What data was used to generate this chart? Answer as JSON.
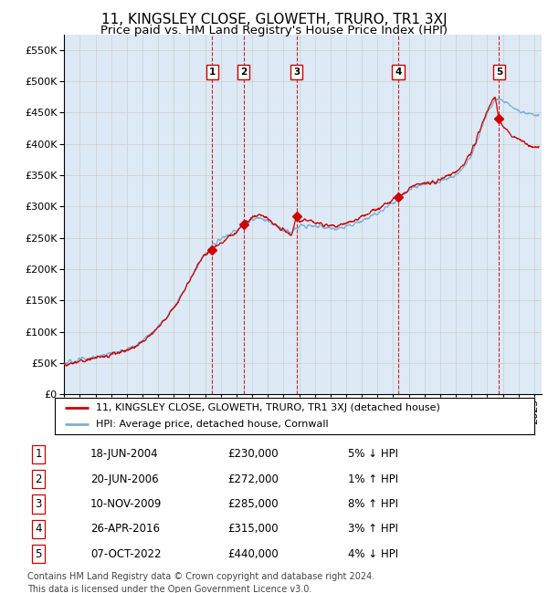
{
  "title": "11, KINGSLEY CLOSE, GLOWETH, TRURO, TR1 3XJ",
  "subtitle": "Price paid vs. HM Land Registry's House Price Index (HPI)",
  "ylim": [
    0,
    575000
  ],
  "yticks": [
    0,
    50000,
    100000,
    150000,
    200000,
    250000,
    300000,
    350000,
    400000,
    450000,
    500000,
    550000
  ],
  "xlim_start": 1995.0,
  "xlim_end": 2025.5,
  "sale_dates_dec": [
    2004.46,
    2006.46,
    2009.84,
    2016.32,
    2022.76
  ],
  "sale_prices": [
    230000,
    272000,
    285000,
    315000,
    440000
  ],
  "sale_labels": [
    "1",
    "2",
    "3",
    "4",
    "5"
  ],
  "red_line_color": "#cc0000",
  "blue_line_color": "#7aaed6",
  "grid_color": "#cccccc",
  "background_color": "#ddeaf5",
  "legend_entries": [
    "11, KINGSLEY CLOSE, GLOWETH, TRURO, TR1 3XJ (detached house)",
    "HPI: Average price, detached house, Cornwall"
  ],
  "table_data": [
    [
      "1",
      "18-JUN-2004",
      "£230,000",
      "5% ↓ HPI"
    ],
    [
      "2",
      "20-JUN-2006",
      "£272,000",
      "1% ↑ HPI"
    ],
    [
      "3",
      "10-NOV-2009",
      "£285,000",
      "8% ↑ HPI"
    ],
    [
      "4",
      "26-APR-2016",
      "£315,000",
      "3% ↑ HPI"
    ],
    [
      "5",
      "07-OCT-2022",
      "£440,000",
      "4% ↓ HPI"
    ]
  ],
  "footnote": "Contains HM Land Registry data © Crown copyright and database right 2024.\nThis data is licensed under the Open Government Licence v3.0.",
  "title_fontsize": 11,
  "subtitle_fontsize": 9.5,
  "tick_fontsize": 8,
  "legend_fontsize": 8,
  "table_fontsize": 8.5,
  "footnote_fontsize": 7
}
